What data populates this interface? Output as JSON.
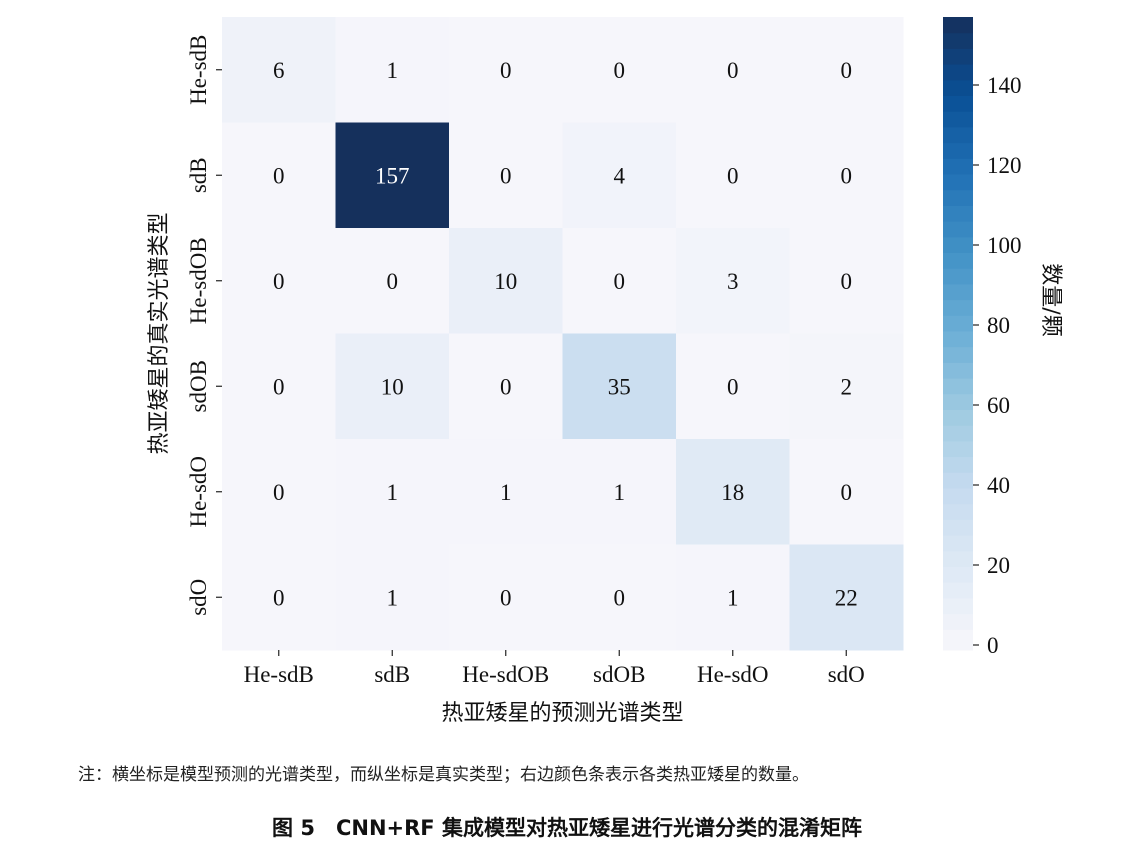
{
  "chart_data": {
    "type": "heatmap",
    "title": "",
    "xlabel": "热亚矮星的预测光谱类型",
    "ylabel": "热亚矮星的真实光谱类型",
    "x_categories": [
      "He-sdB",
      "sdB",
      "He-sdOB",
      "sdOB",
      "He-sdO",
      "sdO"
    ],
    "y_categories": [
      "He-sdB",
      "sdB",
      "He-sdOB",
      "sdOB",
      "He-sdO",
      "sdO"
    ],
    "values": [
      [
        6,
        1,
        0,
        0,
        0,
        0
      ],
      [
        0,
        157,
        0,
        4,
        0,
        0
      ],
      [
        0,
        0,
        10,
        0,
        3,
        0
      ],
      [
        0,
        10,
        0,
        35,
        0,
        2
      ],
      [
        0,
        1,
        1,
        1,
        18,
        0
      ],
      [
        0,
        1,
        0,
        0,
        1,
        22
      ]
    ],
    "colormap": "Blues",
    "colorbar": {
      "label": "数量/颗",
      "range": [
        0,
        157
      ],
      "ticks": [
        0,
        20,
        40,
        60,
        80,
        100,
        120,
        140
      ]
    }
  },
  "note": "注：横坐标是模型预测的光谱类型，而纵坐标是真实类型；右边颜色条表示各类热亚矮星的数量。",
  "caption": "图 5　CNN+RF 集成模型对热亚矮星进行光谱分类的混淆矩阵"
}
